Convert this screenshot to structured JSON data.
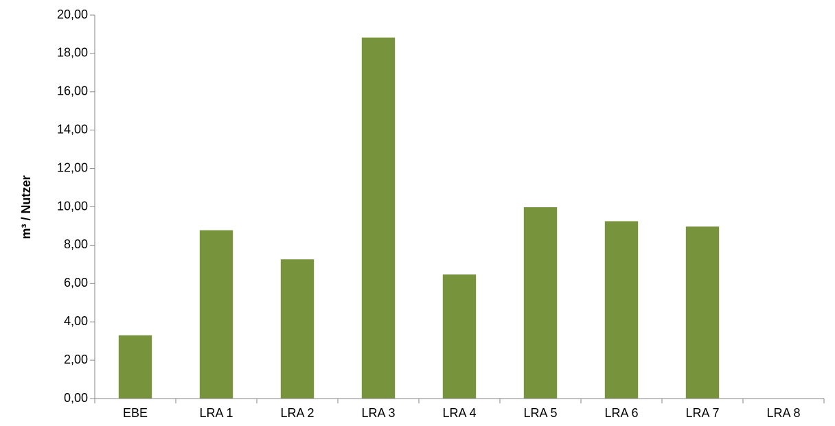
{
  "chart_data": {
    "type": "bar",
    "title": "",
    "xlabel": "",
    "ylabel": "m³ / Nutzer",
    "categories": [
      "EBE",
      "LRA 1",
      "LRA 2",
      "LRA 3",
      "LRA 4",
      "LRA 5",
      "LRA 6",
      "LRA 7",
      "LRA 8"
    ],
    "values": [
      3.3,
      8.78,
      7.26,
      18.83,
      6.47,
      9.98,
      9.25,
      8.97,
      0
    ],
    "ylim": [
      0,
      20
    ],
    "ytick_step": 2,
    "ytick_labels": [
      "0,00",
      "2,00",
      "4,00",
      "6,00",
      "8,00",
      "10,00",
      "12,00",
      "14,00",
      "16,00",
      "18,00",
      "20,00"
    ],
    "grid": false,
    "legend": "none",
    "bar_color": "#77933C"
  }
}
